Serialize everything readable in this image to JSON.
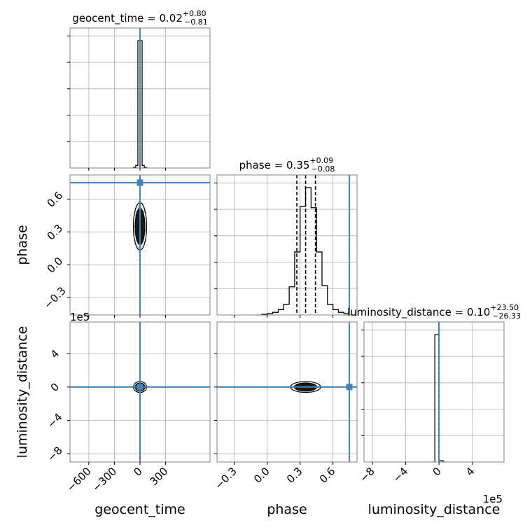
{
  "chart_data": {
    "type": "corner",
    "parameters": [
      "geocent_time",
      "phase",
      "luminosity_distance"
    ],
    "truths": {
      "geocent_time": 0,
      "phase": 0.75,
      "luminosity_distance": 0
    },
    "titles": [
      {
        "param": "geocent_time",
        "text": "geocent_time = 0.02",
        "plus": "+0.80",
        "minus": "−0.81"
      },
      {
        "param": "phase",
        "text": "phase = 0.35",
        "plus": "+0.09",
        "minus": "−0.08"
      },
      {
        "param": "luminosity_distance",
        "text": "luminosity_distance = 0.10",
        "plus": "+23.50",
        "minus": "−26.33"
      }
    ],
    "axes": {
      "geocent_time": {
        "range": [
          -820,
          820
        ],
        "ticks": [
          -600,
          -300,
          0,
          300
        ],
        "tick_labels": [
          "−600",
          "−300",
          "0",
          "300"
        ]
      },
      "phase": {
        "range": [
          -0.46,
          0.82
        ],
        "ticks": [
          -0.3,
          0.0,
          0.3,
          0.6
        ],
        "tick_labels": [
          "−0.3",
          "0.0",
          "0.3",
          "0.6"
        ]
      },
      "luminosity_distance": {
        "range": [
          -9.0,
          7.8
        ],
        "ticks": [
          -8,
          -4,
          0,
          4
        ],
        "tick_labels": [
          "−8",
          "−4",
          "0",
          "4"
        ],
        "offset_text": "1e5"
      }
    },
    "quantiles": {
      "geocent_time": [
        -0.79,
        0.02,
        0.82
      ],
      "phase": [
        0.27,
        0.35,
        0.44
      ],
      "luminosity_distance": [
        -26.23,
        0.1,
        23.6
      ]
    },
    "histograms": {
      "geocent_time": {
        "edges": [
          -100,
          -75,
          -50,
          -25,
          0,
          25,
          50,
          75,
          100
        ],
        "counts": [
          0.0,
          0.004,
          0.02,
          0.98,
          0.98,
          0.02,
          0.004,
          0.0
        ]
      },
      "phase": {
        "edges": [
          -0.1,
          -0.05,
          0.0,
          0.05,
          0.1,
          0.15,
          0.2,
          0.25,
          0.3,
          0.35,
          0.4,
          0.45,
          0.5,
          0.55,
          0.6,
          0.65,
          0.7,
          0.75,
          0.8
        ],
        "counts": [
          0.0,
          0.005,
          0.01,
          0.02,
          0.04,
          0.08,
          0.21,
          0.47,
          0.81,
          0.95,
          0.8,
          0.47,
          0.22,
          0.08,
          0.04,
          0.02,
          0.01,
          0.0
        ]
      },
      "luminosity_distance": {
        "edges": [
          -1.0,
          -0.5,
          0.0,
          0.5,
          1.0
        ],
        "counts": [
          0.0,
          0.98,
          0.01,
          0.0
        ]
      }
    },
    "xlabels": [
      "geocent_time",
      "phase",
      "luminosity_distance"
    ],
    "ylabels": [
      "phase",
      "luminosity_distance"
    ]
  }
}
